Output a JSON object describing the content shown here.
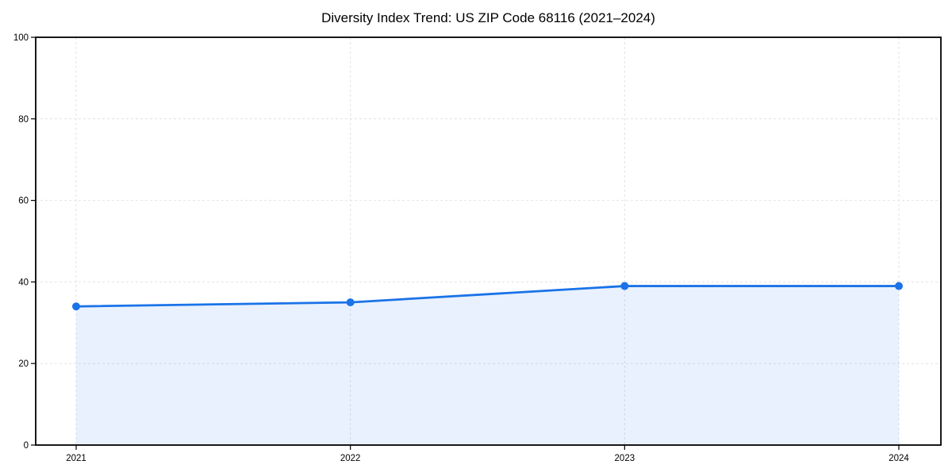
{
  "chart_data": {
    "type": "area",
    "title": "Diversity Index Trend: US ZIP Code 68116 (2021–2024)",
    "series_name": "Diversity Index",
    "x": [
      "2021",
      "2022",
      "2023",
      "2024"
    ],
    "values": [
      34,
      35,
      39,
      39
    ],
    "xlabel": "",
    "ylabel": "",
    "ylim": [
      0,
      100
    ],
    "yticks": [
      0,
      20,
      40,
      60,
      80,
      100
    ],
    "grid": "dashed",
    "legend_position": "none",
    "colors": {
      "line": "#1a73e8",
      "marker": "#1a73e8",
      "area_fill": "#e8f1fd",
      "grid": "#e2e2e2",
      "frame": "#000000",
      "background": "#ffffff",
      "text": "#000000"
    }
  }
}
